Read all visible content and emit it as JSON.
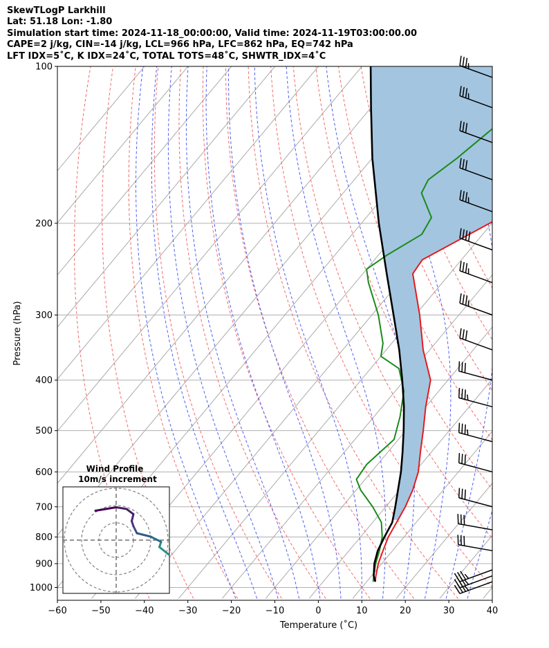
{
  "header": {
    "line1": "SkewTLogP Larkhill",
    "line2": "Lat: 51.18   Lon: -1.80",
    "line3": "Simulation start time: 2024-11-18_00:00:00, Valid time: 2024-11-19T03:00:00.00",
    "line4": "CAPE=2 j/kg, CIN=-14 j/kg, LCL=966 hPa, LFC=862 hPa, EQ=742 hPa",
    "line5": "LFT IDX=5˚C, K IDX=24˚C, TOTAL TOTS=48˚C, SHWTR_IDX=4˚C"
  },
  "chart_data": {
    "type": "skewt-logp",
    "xlabel": "Temperature (˚C)",
    "ylabel": "Pressure (hPa)",
    "xlim": [
      -60,
      40
    ],
    "ylim": [
      1040,
      100
    ],
    "x_ticks": [
      -60,
      -50,
      -40,
      -30,
      -20,
      -10,
      0,
      10,
      20,
      30,
      40
    ],
    "x_tick_labels": [
      "−60",
      "−50",
      "−40",
      "−30",
      "−20",
      "−10",
      "0",
      "10",
      "20",
      "30",
      "40"
    ],
    "y_ticks": [
      1000,
      900,
      800,
      700,
      600,
      500,
      400,
      300,
      200,
      100
    ],
    "y_tick_labels": [
      "1000",
      "900",
      "800",
      "700",
      "600",
      "500",
      "400",
      "300",
      "200",
      "100"
    ],
    "grid": true,
    "colors": {
      "temperature": "#e41a1c",
      "dewpoint": "#1a8a1a",
      "parcel": "#000000",
      "cape_fill": "#a3c5e0",
      "dry_adiabats": "#f26b6b",
      "moist_adiabats": "#4f5ff2",
      "isotherms": "#aaaaaa"
    },
    "series": [
      {
        "id": "temperature",
        "points": [
          {
            "p": 975,
            "t": 12.0
          },
          {
            "p": 950,
            "t": 11.0
          },
          {
            "p": 900,
            "t": 9.2
          },
          {
            "p": 850,
            "t": 7.8
          },
          {
            "p": 800,
            "t": 6.4
          },
          {
            "p": 750,
            "t": 5.5
          },
          {
            "p": 700,
            "t": 4.5
          },
          {
            "p": 650,
            "t": 3.0
          },
          {
            "p": 600,
            "t": 0.8
          },
          {
            "p": 550,
            "t": -2.5
          },
          {
            "p": 500,
            "t": -6.0
          },
          {
            "p": 450,
            "t": -10.0
          },
          {
            "p": 400,
            "t": -14.0
          },
          {
            "p": 350,
            "t": -21.5
          },
          {
            "p": 300,
            "t": -29.0
          },
          {
            "p": 250,
            "t": -38.5
          },
          {
            "p": 235,
            "t": -39.0
          },
          {
            "p": 220,
            "t": -35.5
          },
          {
            "p": 200,
            "t": -30.5
          },
          {
            "p": 180,
            "t": -26.0
          },
          {
            "p": 165,
            "t": -22.5
          },
          {
            "p": 150,
            "t": -20.5
          },
          {
            "p": 135,
            "t": -19.0
          },
          {
            "p": 120,
            "t": -18.5
          },
          {
            "p": 110,
            "t": -17.0
          },
          {
            "p": 100,
            "t": -16.5
          }
        ]
      },
      {
        "id": "dewpoint",
        "points": [
          {
            "p": 975,
            "t": 11.5
          },
          {
            "p": 950,
            "t": 10.5
          },
          {
            "p": 900,
            "t": 8.6
          },
          {
            "p": 850,
            "t": 7.0
          },
          {
            "p": 800,
            "t": 5.0
          },
          {
            "p": 750,
            "t": 2.0
          },
          {
            "p": 700,
            "t": -3.0
          },
          {
            "p": 650,
            "t": -9.0
          },
          {
            "p": 620,
            "t": -12.0
          },
          {
            "p": 580,
            "t": -12.5
          },
          {
            "p": 520,
            "t": -11.0
          },
          {
            "p": 470,
            "t": -14.0
          },
          {
            "p": 420,
            "t": -18.0
          },
          {
            "p": 380,
            "t": -23.5
          },
          {
            "p": 360,
            "t": -30.0
          },
          {
            "p": 340,
            "t": -32.0
          },
          {
            "p": 300,
            "t": -38.5
          },
          {
            "p": 260,
            "t": -47.0
          },
          {
            "p": 245,
            "t": -50.0
          },
          {
            "p": 230,
            "t": -48.0
          },
          {
            "p": 210,
            "t": -44.0
          },
          {
            "p": 195,
            "t": -45.0
          },
          {
            "p": 175,
            "t": -52.0
          },
          {
            "p": 165,
            "t": -53.0
          },
          {
            "p": 150,
            "t": -50.5
          },
          {
            "p": 135,
            "t": -48.5
          },
          {
            "p": 115,
            "t": -45.5
          },
          {
            "p": 100,
            "t": -43.5
          }
        ]
      },
      {
        "id": "parcel",
        "points": [
          {
            "p": 975,
            "t": 12.0
          },
          {
            "p": 950,
            "t": 10.5
          },
          {
            "p": 900,
            "t": 8.3
          },
          {
            "p": 850,
            "t": 6.6
          },
          {
            "p": 800,
            "t": 5.5
          },
          {
            "p": 750,
            "t": 4.5
          },
          {
            "p": 700,
            "t": 2.2
          },
          {
            "p": 650,
            "t": -0.4
          },
          {
            "p": 600,
            "t": -3.2
          },
          {
            "p": 550,
            "t": -6.6
          },
          {
            "p": 500,
            "t": -10.5
          },
          {
            "p": 450,
            "t": -15.0
          },
          {
            "p": 400,
            "t": -20.5
          },
          {
            "p": 350,
            "t": -27.0
          },
          {
            "p": 300,
            "t": -35.0
          },
          {
            "p": 250,
            "t": -44.5
          },
          {
            "p": 200,
            "t": -56.0
          },
          {
            "p": 150,
            "t": -70.0
          },
          {
            "p": 120,
            "t": -80.0
          },
          {
            "p": 100,
            "t": -88.0
          }
        ]
      }
    ],
    "isotherms": [
      -140,
      -130,
      -120,
      -110,
      -100,
      -90,
      -80,
      -70,
      -60,
      -50,
      -40,
      -30,
      -20,
      -10,
      0,
      10,
      20,
      30,
      40
    ],
    "dry_adiabats_theta_c": [
      -40,
      -30,
      -20,
      -10,
      0,
      10,
      20,
      30,
      40,
      50,
      60,
      70,
      80,
      90,
      100
    ],
    "moist_adiabats_c": [
      -20,
      -15,
      -10,
      -5,
      0,
      5,
      10,
      15,
      20,
      25,
      30,
      35
    ],
    "wind_barbs": {
      "color": "#000000",
      "levels": [
        {
          "p": 975,
          "speed_kt": 35,
          "dir_deg": 250
        },
        {
          "p": 950,
          "speed_kt": 35,
          "dir_deg": 250
        },
        {
          "p": 925,
          "speed_kt": 35,
          "dir_deg": 250
        },
        {
          "p": 850,
          "speed_kt": 30,
          "dir_deg": 280
        },
        {
          "p": 775,
          "speed_kt": 30,
          "dir_deg": 280
        },
        {
          "p": 700,
          "speed_kt": 30,
          "dir_deg": 285
        },
        {
          "p": 600,
          "speed_kt": 30,
          "dir_deg": 285
        },
        {
          "p": 525,
          "speed_kt": 35,
          "dir_deg": 285
        },
        {
          "p": 450,
          "speed_kt": 35,
          "dir_deg": 285
        },
        {
          "p": 400,
          "speed_kt": 30,
          "dir_deg": 285
        },
        {
          "p": 350,
          "speed_kt": 30,
          "dir_deg": 290
        },
        {
          "p": 300,
          "speed_kt": 35,
          "dir_deg": 290
        },
        {
          "p": 260,
          "speed_kt": 35,
          "dir_deg": 290
        },
        {
          "p": 225,
          "speed_kt": 40,
          "dir_deg": 290
        },
        {
          "p": 190,
          "speed_kt": 35,
          "dir_deg": 290
        },
        {
          "p": 165,
          "speed_kt": 30,
          "dir_deg": 290
        },
        {
          "p": 140,
          "speed_kt": 30,
          "dir_deg": 290
        },
        {
          "p": 120,
          "speed_kt": 35,
          "dir_deg": 290
        },
        {
          "p": 105,
          "speed_kt": 35,
          "dir_deg": 290
        }
      ]
    },
    "hodograph": {
      "title_line1": "Wind Profile",
      "title_line2": "10m/s increment",
      "ring_count": 3,
      "trace": [
        {
          "u": 3.5,
          "v": -1.2,
          "color": "#2a8c8c"
        },
        {
          "u": 3.0,
          "v": -0.8,
          "color": "#2a8c8c"
        },
        {
          "u": 2.5,
          "v": -0.4,
          "color": "#2a8c8c"
        },
        {
          "u": 2.6,
          "v": -0.1,
          "color": "#2b6f8e"
        },
        {
          "u": 2.0,
          "v": 0.2,
          "color": "#2f5b8a"
        },
        {
          "u": 1.2,
          "v": 0.4,
          "color": "#3a4a8a"
        },
        {
          "u": 1.0,
          "v": 0.8,
          "color": "#463787"
        },
        {
          "u": 0.9,
          "v": 1.1,
          "color": "#472a7a"
        },
        {
          "u": 1.0,
          "v": 1.5,
          "color": "#46236c"
        },
        {
          "u": 0.6,
          "v": 1.8,
          "color": "#45205f"
        },
        {
          "u": 0.0,
          "v": 1.9,
          "color": "#440154"
        },
        {
          "u": -0.6,
          "v": 1.8,
          "color": "#440154"
        },
        {
          "u": -1.2,
          "v": 1.7,
          "color": "#440154"
        }
      ]
    }
  }
}
